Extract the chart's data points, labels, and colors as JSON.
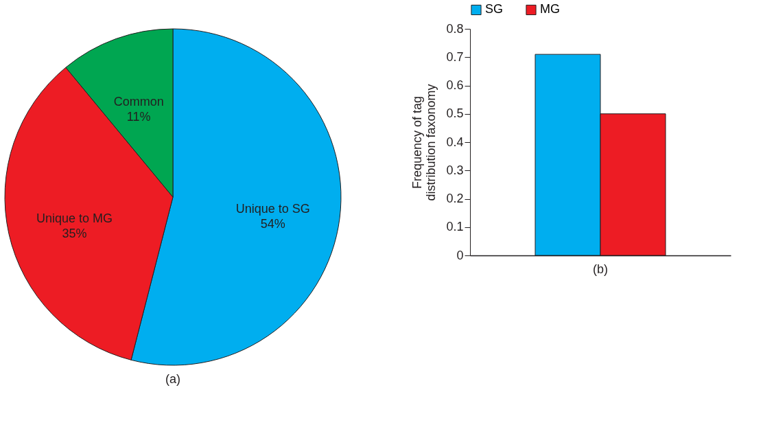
{
  "chart_data": [
    {
      "type": "pie",
      "categories": [
        "Unique to SG",
        "Unique to MG",
        "Common"
      ],
      "values": [
        54,
        35,
        11
      ],
      "colors": [
        "#00aeef",
        "#ed1c24",
        "#00a651"
      ],
      "value_labels": [
        "54%",
        "35%",
        "11%"
      ],
      "annotations": [
        "(a)"
      ]
    },
    {
      "type": "bar",
      "categories": [
        null
      ],
      "series": [
        {
          "name": "SG",
          "color": "#00aeef",
          "values": [
            0.71
          ]
        },
        {
          "name": "MG",
          "color": "#ed1c24",
          "values": [
            0.5
          ]
        }
      ],
      "ylabel": "Frequency of tag\ndistribution faxonomy",
      "ylim": [
        0,
        0.8
      ],
      "yticks": [
        0,
        0.1,
        0.2,
        0.3,
        0.4,
        0.5,
        0.6,
        0.7,
        0.8
      ],
      "grid": false,
      "legend": "top",
      "annotations": [
        "(b)"
      ]
    }
  ]
}
